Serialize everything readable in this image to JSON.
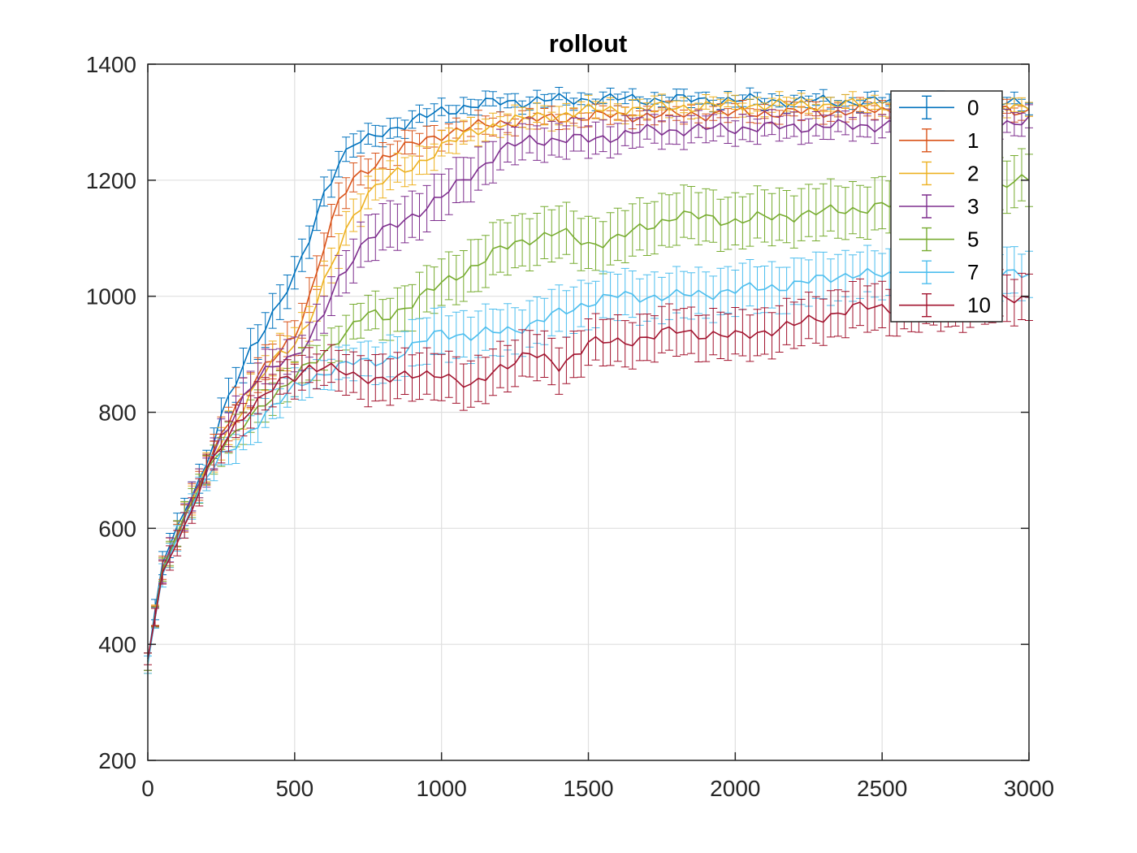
{
  "chart_data": {
    "type": "line",
    "title": "rollout",
    "xlabel": "",
    "ylabel": "",
    "xlim": [
      0,
      3000
    ],
    "ylim": [
      200,
      1400
    ],
    "xticks": [
      0,
      500,
      1000,
      1500,
      2000,
      2500,
      3000
    ],
    "xtick_labels": [
      "0",
      "500",
      "1000",
      "1500",
      "2000",
      "2500",
      "3000"
    ],
    "yticks": [
      200,
      400,
      600,
      800,
      1000,
      1200,
      1400
    ],
    "ytick_labels": [
      "200",
      "400",
      "600",
      "800",
      "1000",
      "1200",
      "1400"
    ],
    "grid": true,
    "legend_position": "top-right",
    "error_bars": true,
    "series": [
      {
        "name": "0",
        "color": "#0072BD",
        "x": [
          0,
          50,
          100,
          150,
          200,
          250,
          300,
          350,
          400,
          450,
          500,
          550,
          600,
          650,
          700,
          750,
          800,
          900,
          1000,
          1200,
          1500,
          2000,
          2500,
          3000
        ],
        "y": [
          370,
          540,
          600,
          660,
          710,
          790,
          850,
          910,
          950,
          990,
          1030,
          1100,
          1180,
          1230,
          1260,
          1270,
          1285,
          1300,
          1320,
          1335,
          1340,
          1338,
          1335,
          1330
        ],
        "err": [
          15,
          20,
          22,
          25,
          25,
          28,
          30,
          30,
          30,
          30,
          28,
          28,
          25,
          22,
          20,
          18,
          18,
          15,
          15,
          12,
          10,
          10,
          10,
          10
        ]
      },
      {
        "name": "1",
        "color": "#D95319",
        "x": [
          0,
          50,
          100,
          150,
          200,
          250,
          300,
          350,
          400,
          450,
          500,
          550,
          600,
          650,
          700,
          750,
          800,
          900,
          1000,
          1200,
          1500,
          2000,
          2500,
          3000
        ],
        "y": [
          370,
          530,
          590,
          650,
          700,
          760,
          810,
          850,
          880,
          900,
          930,
          1000,
          1090,
          1160,
          1200,
          1220,
          1240,
          1260,
          1280,
          1300,
          1310,
          1315,
          1320,
          1320
        ],
        "err": [
          15,
          20,
          22,
          25,
          25,
          28,
          30,
          30,
          30,
          30,
          30,
          30,
          28,
          28,
          25,
          25,
          22,
          20,
          18,
          15,
          12,
          12,
          12,
          12
        ]
      },
      {
        "name": "2",
        "color": "#EDB120",
        "x": [
          0,
          50,
          100,
          150,
          200,
          250,
          300,
          350,
          400,
          450,
          500,
          550,
          600,
          650,
          700,
          750,
          800,
          900,
          1000,
          1200,
          1500,
          2000,
          2500,
          3000
        ],
        "y": [
          365,
          530,
          590,
          650,
          700,
          750,
          790,
          830,
          870,
          900,
          920,
          960,
          1020,
          1080,
          1140,
          1180,
          1200,
          1220,
          1260,
          1300,
          1320,
          1330,
          1330,
          1330
        ],
        "err": [
          15,
          20,
          22,
          25,
          25,
          28,
          30,
          30,
          30,
          30,
          30,
          30,
          30,
          30,
          28,
          28,
          25,
          25,
          22,
          18,
          15,
          12,
          12,
          12
        ]
      },
      {
        "name": "3",
        "color": "#7E2F8E",
        "x": [
          0,
          50,
          100,
          150,
          200,
          250,
          300,
          350,
          400,
          450,
          500,
          550,
          600,
          650,
          700,
          750,
          800,
          900,
          1000,
          1100,
          1200,
          1300,
          1500,
          1700,
          2000,
          2500,
          3000
        ],
        "y": [
          370,
          530,
          590,
          650,
          700,
          760,
          800,
          840,
          870,
          890,
          900,
          920,
          970,
          1030,
          1070,
          1100,
          1110,
          1140,
          1170,
          1210,
          1250,
          1270,
          1270,
          1285,
          1290,
          1295,
          1300
        ],
        "err": [
          15,
          20,
          22,
          25,
          25,
          28,
          30,
          30,
          30,
          30,
          30,
          30,
          32,
          35,
          38,
          40,
          40,
          40,
          40,
          38,
          35,
          30,
          28,
          25,
          22,
          20,
          20
        ]
      },
      {
        "name": "5",
        "color": "#77AC30",
        "x": [
          0,
          50,
          100,
          150,
          200,
          250,
          300,
          350,
          400,
          450,
          500,
          550,
          600,
          650,
          700,
          750,
          800,
          900,
          1000,
          1100,
          1200,
          1300,
          1400,
          1500,
          1600,
          1800,
          2000,
          2200,
          2400,
          2600,
          2800,
          3000
        ],
        "y": [
          370,
          525,
          590,
          645,
          700,
          740,
          760,
          790,
          820,
          840,
          860,
          880,
          900,
          930,
          950,
          970,
          960,
          990,
          1020,
          1050,
          1080,
          1100,
          1110,
          1090,
          1100,
          1140,
          1130,
          1140,
          1150,
          1160,
          1180,
          1200
        ],
        "err": [
          15,
          20,
          22,
          25,
          25,
          25,
          28,
          28,
          28,
          28,
          30,
          30,
          30,
          30,
          30,
          30,
          35,
          40,
          40,
          45,
          45,
          45,
          45,
          45,
          45,
          45,
          45,
          45,
          45,
          45,
          45,
          45
        ]
      },
      {
        "name": "7",
        "color": "#4DBEEE",
        "x": [
          0,
          50,
          100,
          150,
          200,
          250,
          300,
          350,
          400,
          450,
          500,
          550,
          600,
          650,
          700,
          750,
          800,
          900,
          1000,
          1100,
          1200,
          1300,
          1400,
          1500,
          1600,
          1800,
          2000,
          2200,
          2400,
          2600,
          2800,
          3000
        ],
        "y": [
          365,
          520,
          580,
          640,
          690,
          720,
          740,
          770,
          800,
          820,
          840,
          855,
          870,
          880,
          885,
          885,
          890,
          910,
          940,
          930,
          940,
          950,
          970,
          990,
          1000,
          1000,
          1010,
          1020,
          1040,
          1030,
          1030,
          1040
        ],
        "err": [
          15,
          20,
          22,
          22,
          22,
          22,
          25,
          25,
          25,
          25,
          25,
          25,
          25,
          28,
          28,
          30,
          35,
          40,
          40,
          40,
          40,
          40,
          40,
          40,
          40,
          40,
          40,
          40,
          40,
          40,
          40,
          40
        ]
      },
      {
        "name": "10",
        "color": "#A2142F",
        "x": [
          0,
          50,
          100,
          150,
          200,
          250,
          300,
          350,
          400,
          450,
          500,
          550,
          600,
          650,
          700,
          750,
          800,
          900,
          1000,
          1100,
          1200,
          1300,
          1400,
          1500,
          1600,
          1800,
          2000,
          2200,
          2400,
          2600,
          2800,
          3000
        ],
        "y": [
          375,
          520,
          580,
          630,
          700,
          740,
          780,
          810,
          830,
          850,
          860,
          880,
          880,
          870,
          860,
          860,
          860,
          860,
          870,
          840,
          880,
          900,
          880,
          920,
          920,
          940,
          930,
          950,
          980,
          980,
          990,
          1000
        ],
        "err": [
          10,
          20,
          22,
          22,
          25,
          25,
          28,
          28,
          28,
          28,
          30,
          30,
          30,
          35,
          35,
          40,
          40,
          40,
          40,
          40,
          40,
          40,
          40,
          40,
          40,
          40,
          40,
          40,
          40,
          40,
          40,
          40
        ]
      }
    ]
  }
}
